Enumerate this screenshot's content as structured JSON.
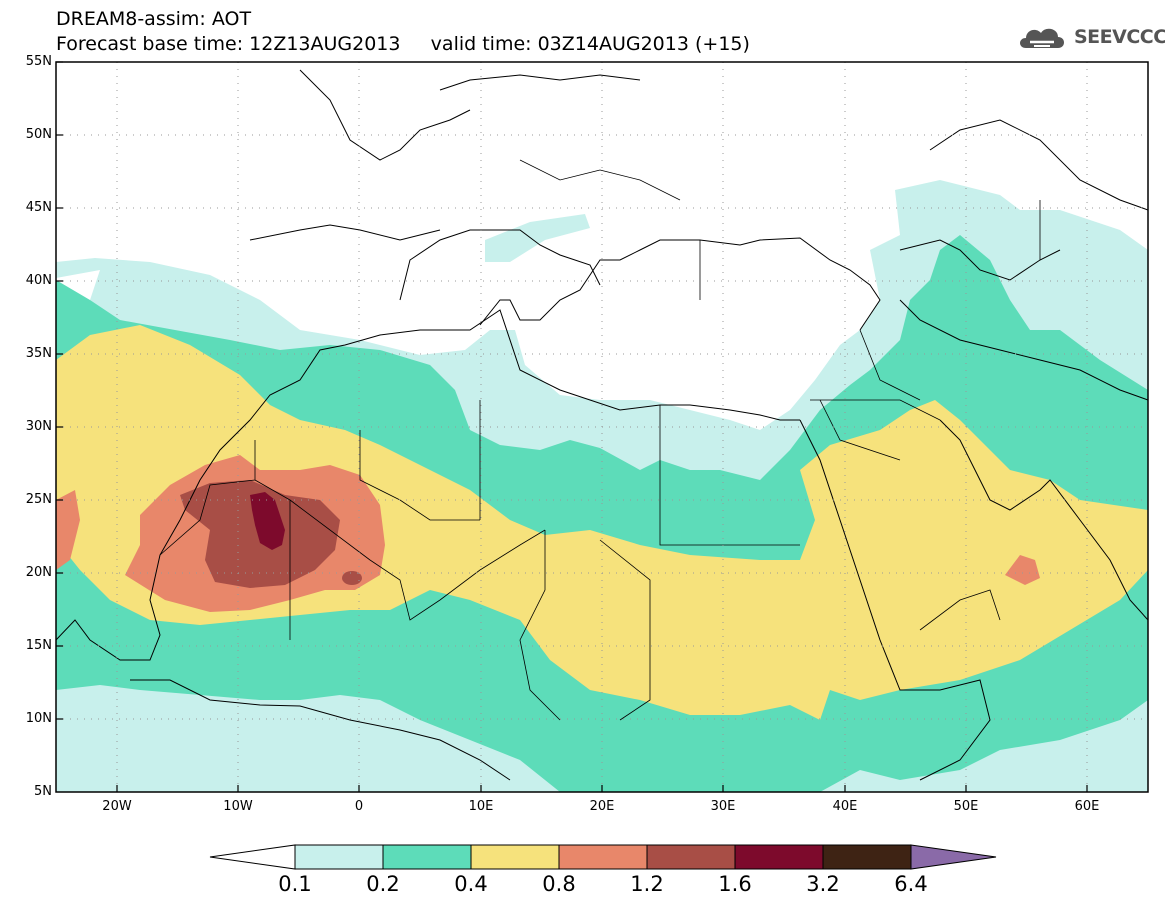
{
  "header": {
    "line1": "DREAM8-assim: AOT",
    "line2": "Forecast base time: 12Z13AUG2013     valid time: 03Z14AUG2013 (+15)"
  },
  "logo": {
    "text": "SEEVCCC",
    "icon": "cloud-icon",
    "color": "#555555"
  },
  "map": {
    "lon_range": [
      -25,
      65
    ],
    "lat_range": [
      5,
      55
    ],
    "lat_ticks": [
      "55N",
      "50N",
      "45N",
      "40N",
      "35N",
      "30N",
      "25N",
      "20N",
      "15N",
      "10N",
      "5N"
    ],
    "lon_ticks": [
      "20W",
      "10W",
      "0",
      "10E",
      "20E",
      "30E",
      "40E",
      "50E",
      "60E"
    ],
    "gridlines": "dotted",
    "field": "AOT"
  },
  "colorbar": {
    "levels": [
      "0.1",
      "0.2",
      "0.4",
      "0.8",
      "1.2",
      "1.6",
      "3.2",
      "6.4"
    ],
    "colors": [
      "#c8f0ec",
      "#5ddcb9",
      "#f6e27c",
      "#e8876a",
      "#a84e46",
      "#7d0a2c",
      "#3e2314",
      "#8a6aa8"
    ]
  }
}
